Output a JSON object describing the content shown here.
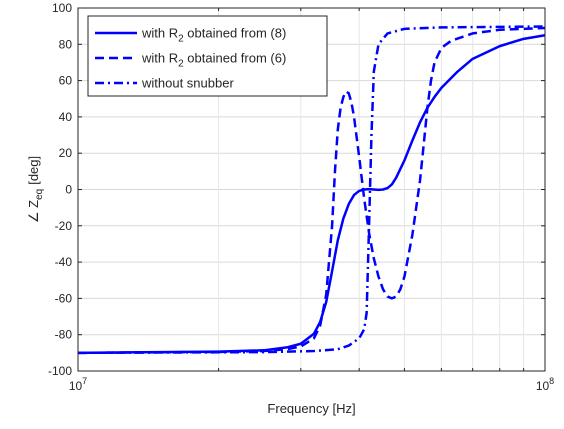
{
  "chart_data": {
    "type": "line",
    "title": "",
    "xlabel": "Frequency [Hz]",
    "ylabel": {
      "main": "∠ Z",
      "sub": "eq",
      "unit": "[deg]"
    },
    "x_scale": "log",
    "xlim": [
      10000000,
      100000000
    ],
    "ylim": [
      -100,
      100
    ],
    "x_ticks": [
      {
        "value": 10000000,
        "base": "10",
        "exp": "7"
      },
      {
        "value": 100000000,
        "base": "10",
        "exp": "8"
      }
    ],
    "y_ticks": [
      -100,
      -80,
      -60,
      -40,
      -20,
      0,
      20,
      40,
      60,
      80,
      100
    ],
    "grid": true,
    "legend_position": "top-left",
    "color": "#0000ff",
    "series": [
      {
        "name_parts": [
          "with R",
          "2",
          " obtained from (8)"
        ],
        "style": "solid",
        "points": [
          [
            10000000,
            -90
          ],
          [
            20000000,
            -89.3
          ],
          [
            25000000,
            -88.6
          ],
          [
            28000000,
            -87
          ],
          [
            30000000,
            -85
          ],
          [
            32000000,
            -79.5
          ],
          [
            33000000,
            -73
          ],
          [
            34000000,
            -62
          ],
          [
            35000000,
            -45
          ],
          [
            36000000,
            -28
          ],
          [
            37000000,
            -16
          ],
          [
            38000000,
            -8
          ],
          [
            39000000,
            -3
          ],
          [
            40000000,
            -0.8
          ],
          [
            41000000,
            0
          ],
          [
            42000000,
            0.2
          ],
          [
            43000000,
            0
          ],
          [
            44000000,
            -0.2
          ],
          [
            45000000,
            0
          ],
          [
            46000000,
            0.8
          ],
          [
            47000000,
            2.8
          ],
          [
            48000000,
            6.5
          ],
          [
            50000000,
            16
          ],
          [
            52000000,
            27
          ],
          [
            54000000,
            37
          ],
          [
            56000000,
            45
          ],
          [
            58000000,
            51
          ],
          [
            60000000,
            56
          ],
          [
            65000000,
            65
          ],
          [
            70000000,
            72
          ],
          [
            80000000,
            79
          ],
          [
            90000000,
            83
          ],
          [
            100000000,
            85
          ]
        ]
      },
      {
        "name_parts": [
          "with R",
          "2",
          " obtained from (6)"
        ],
        "style": "dashed",
        "points": [
          [
            10000000,
            -90
          ],
          [
            20000000,
            -89.5
          ],
          [
            25000000,
            -89
          ],
          [
            28000000,
            -88
          ],
          [
            30000000,
            -86.5
          ],
          [
            32000000,
            -82
          ],
          [
            33000000,
            -75
          ],
          [
            34000000,
            -58
          ],
          [
            35000000,
            -20
          ],
          [
            35500000,
            10
          ],
          [
            36000000,
            33
          ],
          [
            36500000,
            45
          ],
          [
            37000000,
            51
          ],
          [
            37500000,
            54
          ],
          [
            38000000,
            53
          ],
          [
            38500000,
            48
          ],
          [
            39000000,
            40
          ],
          [
            40000000,
            18
          ],
          [
            41000000,
            -5
          ],
          [
            42000000,
            -24
          ],
          [
            43000000,
            -38
          ],
          [
            44000000,
            -48
          ],
          [
            45000000,
            -55
          ],
          [
            46000000,
            -59
          ],
          [
            47000000,
            -60
          ],
          [
            48000000,
            -59
          ],
          [
            49000000,
            -55
          ],
          [
            50000000,
            -48
          ],
          [
            52000000,
            -25
          ],
          [
            54000000,
            5
          ],
          [
            55000000,
            25
          ],
          [
            56000000,
            45
          ],
          [
            57000000,
            60
          ],
          [
            58000000,
            70
          ],
          [
            60000000,
            78
          ],
          [
            63000000,
            82
          ],
          [
            70000000,
            86
          ],
          [
            80000000,
            88
          ],
          [
            100000000,
            89
          ]
        ]
      },
      {
        "name_parts": [
          "without snubber"
        ],
        "style": "dashdot",
        "points": [
          [
            10000000,
            -90
          ],
          [
            25000000,
            -89.6
          ],
          [
            32000000,
            -89
          ],
          [
            36000000,
            -88
          ],
          [
            38000000,
            -86
          ],
          [
            40000000,
            -82
          ],
          [
            41000000,
            -77
          ],
          [
            41500000,
            -68
          ],
          [
            42000000,
            -20
          ],
          [
            42500000,
            30
          ],
          [
            43000000,
            65
          ],
          [
            44000000,
            80
          ],
          [
            46000000,
            86
          ],
          [
            50000000,
            88.5
          ],
          [
            60000000,
            89.3
          ],
          [
            80000000,
            89.6
          ],
          [
            100000000,
            89.8
          ]
        ]
      }
    ]
  }
}
